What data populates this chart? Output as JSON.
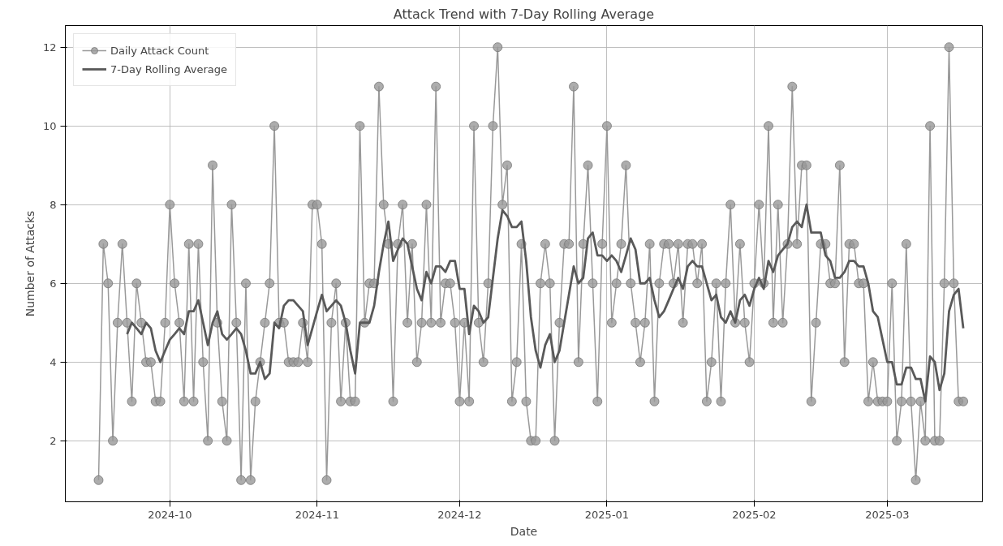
{
  "chart_data": {
    "type": "line",
    "title": "Attack Trend with 7-Day Rolling Average",
    "xlabel": "Date",
    "ylabel": "Number of Attacks",
    "x": [
      "2024-09-16",
      "2024-09-17",
      "2024-09-18",
      "2024-09-19",
      "2024-09-20",
      "2024-09-21",
      "2024-09-22",
      "2024-09-23",
      "2024-09-24",
      "2024-09-25",
      "2024-09-26",
      "2024-09-27",
      "2024-09-28",
      "2024-09-29",
      "2024-09-30",
      "2024-10-01",
      "2024-10-02",
      "2024-10-03",
      "2024-10-04",
      "2024-10-05",
      "2024-10-06",
      "2024-10-07",
      "2024-10-08",
      "2024-10-09",
      "2024-10-10",
      "2024-10-11",
      "2024-10-12",
      "2024-10-13",
      "2024-10-14",
      "2024-10-15",
      "2024-10-16",
      "2024-10-17",
      "2024-10-18",
      "2024-10-19",
      "2024-10-20",
      "2024-10-21",
      "2024-10-22",
      "2024-10-23",
      "2024-10-24",
      "2024-10-25",
      "2024-10-26",
      "2024-10-27",
      "2024-10-28",
      "2024-10-29",
      "2024-10-30",
      "2024-10-31",
      "2024-11-01",
      "2024-11-02",
      "2024-11-03",
      "2024-11-04",
      "2024-11-05",
      "2024-11-06",
      "2024-11-07",
      "2024-11-08",
      "2024-11-09",
      "2024-11-10",
      "2024-11-11",
      "2024-11-12",
      "2024-11-13",
      "2024-11-14",
      "2024-11-15",
      "2024-11-16",
      "2024-11-17",
      "2024-11-18",
      "2024-11-19",
      "2024-11-20",
      "2024-11-21",
      "2024-11-22",
      "2024-11-23",
      "2024-11-24",
      "2024-11-25",
      "2024-11-26",
      "2024-11-27",
      "2024-11-28",
      "2024-11-29",
      "2024-11-30",
      "2024-12-01",
      "2024-12-02",
      "2024-12-03",
      "2024-12-04",
      "2024-12-05",
      "2024-12-06",
      "2024-12-07",
      "2024-12-08",
      "2024-12-09",
      "2024-12-10",
      "2024-12-11",
      "2024-12-12",
      "2024-12-13",
      "2024-12-14",
      "2024-12-15",
      "2024-12-16",
      "2024-12-17",
      "2024-12-18",
      "2024-12-19",
      "2024-12-20",
      "2024-12-21",
      "2024-12-22",
      "2024-12-23",
      "2024-12-24",
      "2024-12-25",
      "2024-12-26",
      "2024-12-27",
      "2024-12-28",
      "2024-12-29",
      "2024-12-30",
      "2024-12-31",
      "2025-01-01",
      "2025-01-02",
      "2025-01-03",
      "2025-01-04",
      "2025-01-05",
      "2025-01-06",
      "2025-01-07",
      "2025-01-08",
      "2025-01-09",
      "2025-01-10",
      "2025-01-11",
      "2025-01-12",
      "2025-01-13",
      "2025-01-14",
      "2025-01-15",
      "2025-01-16",
      "2025-01-17",
      "2025-01-18",
      "2025-01-19",
      "2025-01-20",
      "2025-01-21",
      "2025-01-22",
      "2025-01-23",
      "2025-01-24",
      "2025-01-25",
      "2025-01-26",
      "2025-01-27",
      "2025-01-28",
      "2025-01-29",
      "2025-01-30",
      "2025-01-31",
      "2025-02-01",
      "2025-02-02",
      "2025-02-03",
      "2025-02-04",
      "2025-02-05",
      "2025-02-06",
      "2025-02-07",
      "2025-02-08",
      "2025-02-09",
      "2025-02-10",
      "2025-02-11",
      "2025-02-12",
      "2025-02-13",
      "2025-02-14",
      "2025-02-15",
      "2025-02-16",
      "2025-02-17",
      "2025-02-18",
      "2025-02-19",
      "2025-02-20",
      "2025-02-21",
      "2025-02-22",
      "2025-02-23",
      "2025-02-24",
      "2025-02-25",
      "2025-02-26",
      "2025-02-27",
      "2025-02-28",
      "2025-03-01",
      "2025-03-02",
      "2025-03-03",
      "2025-03-04",
      "2025-03-05",
      "2025-03-06",
      "2025-03-07",
      "2025-03-08",
      "2025-03-09",
      "2025-03-10",
      "2025-03-11",
      "2025-03-12",
      "2025-03-13",
      "2025-03-14",
      "2025-03-15",
      "2025-03-16",
      "2025-03-17"
    ],
    "series": [
      {
        "name": "Daily Attack Count",
        "marker": "circle",
        "color": "#999999",
        "values": [
          1,
          7,
          6,
          2,
          5,
          7,
          5,
          3,
          6,
          5,
          4,
          4,
          3,
          3,
          5,
          8,
          6,
          5,
          3,
          7,
          3,
          7,
          4,
          2,
          9,
          5,
          3,
          2,
          8,
          5,
          1,
          6,
          1,
          3,
          4,
          5,
          6,
          10,
          5,
          5,
          4,
          4,
          4,
          5,
          4,
          8,
          8,
          7,
          1,
          5,
          6,
          3,
          5,
          3,
          3,
          10,
          5,
          6,
          6,
          11,
          8,
          7,
          3,
          7,
          8,
          5,
          7,
          4,
          5,
          8,
          5,
          11,
          5,
          6,
          6,
          5,
          3,
          5,
          3,
          10,
          5,
          4,
          6,
          10,
          12,
          8,
          9,
          3,
          4,
          7,
          3,
          2,
          2,
          6,
          7,
          6,
          2,
          5,
          7,
          7,
          11,
          4,
          7,
          9,
          6,
          3,
          7,
          10,
          5,
          6,
          7,
          9,
          6,
          5,
          4,
          5,
          7,
          3,
          6,
          7,
          7,
          6,
          7,
          5,
          7,
          7,
          6,
          7,
          3,
          4,
          6,
          3,
          6,
          8,
          5,
          7,
          5,
          4,
          6,
          8,
          6,
          10,
          5,
          8,
          5,
          7,
          11,
          7,
          9,
          9,
          3,
          5,
          7,
          7,
          6,
          6,
          9,
          4,
          7,
          7,
          6,
          6,
          3,
          4,
          3,
          3,
          3,
          6,
          2,
          3,
          7,
          3,
          1,
          3,
          2,
          10,
          2,
          2,
          6,
          12,
          6,
          3,
          3
        ]
      },
      {
        "name": "7-Day Rolling Average",
        "marker": "none",
        "color": "#595959",
        "values": [
          null,
          null,
          null,
          null,
          null,
          null,
          4.71,
          5.0,
          4.86,
          4.71,
          5.0,
          4.86,
          4.29,
          4.0,
          4.29,
          4.57,
          4.71,
          4.86,
          4.71,
          5.29,
          5.29,
          5.57,
          5.0,
          4.43,
          5.0,
          5.29,
          4.71,
          4.57,
          4.71,
          4.86,
          4.71,
          4.29,
          3.71,
          3.71,
          4.0,
          3.57,
          3.71,
          5.0,
          4.86,
          5.43,
          5.57,
          5.57,
          5.43,
          5.29,
          4.43,
          4.86,
          5.29,
          5.71,
          5.29,
          5.43,
          5.57,
          5.43,
          5.0,
          4.29,
          3.71,
          5.0,
          5.0,
          5.0,
          5.43,
          6.29,
          7.0,
          7.57,
          6.57,
          6.86,
          7.14,
          7.0,
          6.43,
          5.86,
          5.57,
          6.29,
          6.0,
          6.43,
          6.43,
          6.29,
          6.57,
          6.57,
          5.86,
          5.86,
          4.71,
          5.43,
          5.29,
          5.0,
          5.14,
          6.14,
          7.14,
          7.86,
          7.71,
          7.43,
          7.43,
          7.57,
          6.57,
          5.14,
          4.29,
          3.86,
          4.43,
          4.71,
          4.0,
          4.29,
          5.0,
          5.71,
          6.43,
          6.0,
          6.14,
          7.14,
          7.29,
          6.71,
          6.71,
          6.57,
          6.71,
          6.57,
          6.29,
          6.71,
          7.14,
          6.86,
          6.0,
          6.0,
          6.14,
          5.57,
          5.14,
          5.29,
          5.57,
          5.86,
          6.14,
          5.86,
          6.43,
          6.57,
          6.43,
          6.43,
          6.0,
          5.57,
          5.71,
          5.14,
          5.0,
          5.29,
          5.0,
          5.57,
          5.71,
          5.43,
          5.86,
          6.14,
          5.86,
          6.57,
          6.29,
          6.71,
          6.86,
          7.0,
          7.43,
          7.57,
          7.43,
          8.0,
          7.29,
          7.29,
          7.29,
          6.71,
          6.57,
          6.14,
          6.14,
          6.29,
          6.57,
          6.57,
          6.43,
          6.43,
          6.0,
          5.29,
          5.14,
          4.57,
          4.0,
          4.0,
          3.43,
          3.43,
          3.86,
          3.86,
          3.57,
          3.57,
          3.0,
          4.14,
          4.0,
          3.29,
          3.71,
          5.29,
          5.71,
          5.86,
          4.86
        ]
      }
    ],
    "xlim": [
      "2024-09-09",
      "2025-03-21"
    ],
    "xticks": [
      {
        "value": "2024-10-01",
        "label": "2024-10"
      },
      {
        "value": "2024-11-01",
        "label": "2024-11"
      },
      {
        "value": "2024-12-01",
        "label": "2024-12"
      },
      {
        "value": "2025-01-01",
        "label": "2025-01"
      },
      {
        "value": "2025-02-01",
        "label": "2025-02"
      },
      {
        "value": "2025-03-01",
        "label": "2025-03"
      }
    ],
    "ylim": [
      0.45,
      12.55
    ],
    "yticks": [
      2,
      4,
      6,
      8,
      10,
      12
    ],
    "grid": true,
    "legend": "top left",
    "line_style": "solid"
  }
}
